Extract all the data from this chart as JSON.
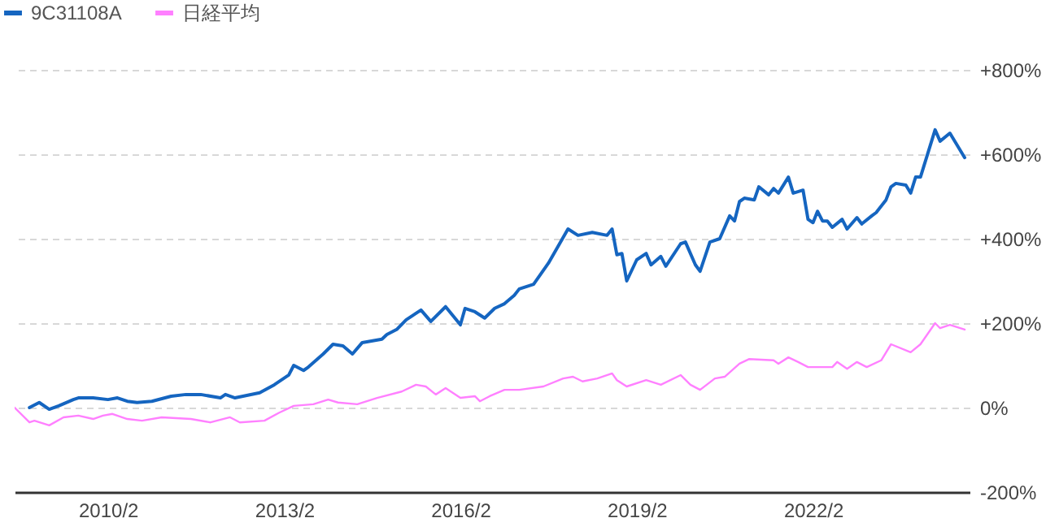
{
  "chart_data": {
    "type": "line",
    "xlim": [
      "2008-07",
      "2024-10"
    ],
    "xticks": [
      {
        "value": "2010-02",
        "label": "2010/2"
      },
      {
        "value": "2013-02",
        "label": "2013/2"
      },
      {
        "value": "2016-02",
        "label": "2016/2"
      },
      {
        "value": "2019-02",
        "label": "2019/2"
      },
      {
        "value": "2022-02",
        "label": "2022/2"
      }
    ],
    "ylim": [
      -200,
      800
    ],
    "yticks": [
      {
        "value": -200,
        "label": "-200%"
      },
      {
        "value": 0,
        "label": "0%"
      },
      {
        "value": 200,
        "label": "+200%"
      },
      {
        "value": 400,
        "label": "+400%"
      },
      {
        "value": 600,
        "label": "+600%"
      },
      {
        "value": 800,
        "label": "+800%"
      }
    ],
    "grid": "y",
    "legend": "top left",
    "line_style": "solid",
    "marker": "none",
    "series": [
      {
        "name": "9C31108A",
        "color": "#1565c0",
        "x": [
          "2008-10",
          "2008-12",
          "2009-02",
          "2009-04",
          "2009-07",
          "2009-08",
          "2009-11",
          "2010-02",
          "2010-04",
          "2010-06",
          "2010-08",
          "2010-11",
          "2011-03",
          "2011-06",
          "2011-09",
          "2012-01",
          "2012-02",
          "2012-04",
          "2012-09",
          "2012-12",
          "2013-03",
          "2013-04",
          "2013-06",
          "2013-07",
          "2013-10",
          "2013-12",
          "2014-02",
          "2014-04",
          "2014-06",
          "2014-10",
          "2014-11",
          "2015-01",
          "2015-03",
          "2015-06",
          "2015-08",
          "2015-11",
          "2016-02",
          "2016-03",
          "2016-05",
          "2016-07",
          "2016-09",
          "2016-11",
          "2017-01",
          "2017-02",
          "2017-05",
          "2017-08",
          "2017-12",
          "2018-02",
          "2018-05",
          "2018-08",
          "2018-09",
          "2018-10",
          "2018-11",
          "2018-12",
          "2019-02",
          "2019-04",
          "2019-05",
          "2019-07",
          "2019-08",
          "2019-11",
          "2019-12",
          "2020-02",
          "2020-03",
          "2020-05",
          "2020-07",
          "2020-09",
          "2020-10",
          "2020-11",
          "2020-12",
          "2021-02",
          "2021-03",
          "2021-05",
          "2021-06",
          "2021-07",
          "2021-09",
          "2021-10",
          "2021-12",
          "2022-01",
          "2022-02",
          "2022-03",
          "2022-04",
          "2022-05",
          "2022-06",
          "2022-08",
          "2022-09",
          "2022-11",
          "2022-12",
          "2023-02",
          "2023-03",
          "2023-05",
          "2023-06",
          "2023-07",
          "2023-09",
          "2023-10",
          "2023-11",
          "2023-12",
          "2024-03",
          "2024-04",
          "2024-06",
          "2024-09"
        ],
        "values": [
          0,
          12,
          -4,
          4,
          19,
          23,
          23,
          19,
          23,
          15,
          12,
          15,
          27,
          31,
          31,
          23,
          31,
          23,
          35,
          54,
          77,
          100,
          88,
          96,
          127,
          150,
          146,
          127,
          154,
          162,
          173,
          185,
          208,
          231,
          204,
          239,
          196,
          235,
          227,
          212,
          235,
          246,
          266,
          281,
          292,
          342,
          423,
          408,
          415,
          408,
          423,
          362,
          365,
          300,
          350,
          365,
          338,
          358,
          335,
          388,
          392,
          338,
          323,
          392,
          400,
          454,
          442,
          488,
          496,
          492,
          523,
          504,
          519,
          508,
          546,
          508,
          515,
          446,
          438,
          465,
          442,
          442,
          427,
          446,
          423,
          450,
          435,
          454,
          462,
          492,
          523,
          531,
          527,
          508,
          546,
          546,
          658,
          631,
          650,
          592
        ]
      },
      {
        "name": "日経平均",
        "color": "#ff80ff",
        "x": [
          "2008-07",
          "2008-10",
          "2008-11",
          "2009-02",
          "2009-05",
          "2009-08",
          "2009-11",
          "2010-01",
          "2010-03",
          "2010-06",
          "2010-09",
          "2011-01",
          "2011-07",
          "2011-11",
          "2012-03",
          "2012-05",
          "2012-10",
          "2013-01",
          "2013-04",
          "2013-08",
          "2013-11",
          "2014-01",
          "2014-05",
          "2014-09",
          "2015-02",
          "2015-05",
          "2015-07",
          "2015-09",
          "2015-11",
          "2016-02",
          "2016-05",
          "2016-06",
          "2016-08",
          "2016-11",
          "2017-02",
          "2017-07",
          "2017-11",
          "2018-01",
          "2018-03",
          "2018-06",
          "2018-09",
          "2018-10",
          "2018-12",
          "2019-04",
          "2019-07",
          "2019-11",
          "2020-01",
          "2020-03",
          "2020-06",
          "2020-08",
          "2020-11",
          "2021-01",
          "2021-06",
          "2021-07",
          "2021-09",
          "2021-11",
          "2022-01",
          "2022-06",
          "2022-07",
          "2022-09",
          "2022-11",
          "2023-01",
          "2023-04",
          "2023-06",
          "2023-10",
          "2023-12",
          "2024-03",
          "2024-04",
          "2024-06",
          "2024-09"
        ],
        "values": [
          0,
          -35,
          -31,
          -42,
          -23,
          -19,
          -27,
          -19,
          -15,
          -27,
          -31,
          -23,
          -27,
          -35,
          -23,
          -35,
          -31,
          -12,
          4,
          8,
          19,
          12,
          8,
          23,
          38,
          54,
          50,
          31,
          46,
          23,
          27,
          15,
          27,
          42,
          42,
          50,
          69,
          73,
          62,
          69,
          81,
          65,
          50,
          65,
          54,
          77,
          54,
          42,
          69,
          73,
          104,
          115,
          112,
          104,
          119,
          108,
          96,
          96,
          108,
          92,
          108,
          96,
          112,
          150,
          131,
          150,
          200,
          188,
          196,
          185
        ]
      }
    ]
  }
}
